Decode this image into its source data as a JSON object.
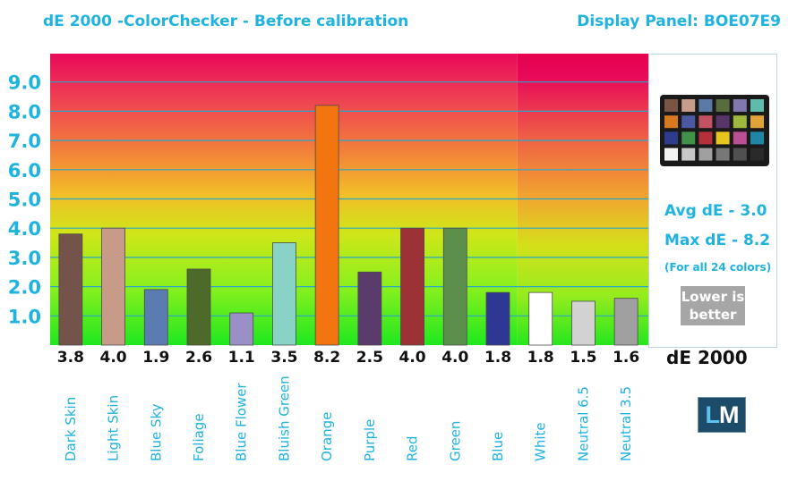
{
  "header": {
    "title": "dE 2000 -ColorChecker  - Before calibration",
    "panel": "Display Panel: BOE07E9"
  },
  "stats": {
    "avg": "Avg dE - 3.0",
    "max": "Max dE - 8.2",
    "note": "(For all 24 colors)",
    "lower_line1": "Lower is",
    "lower_line2": "better"
  },
  "axis_footer": "dE 2000",
  "logo": {
    "l": "L",
    "m": "M"
  },
  "colors": {
    "accent": "#1fb3e0",
    "gridline": "#2aa6c8"
  },
  "checker_swatches": [
    "#7a5544",
    "#c69c8a",
    "#5b7aa5",
    "#586d3d",
    "#8179ae",
    "#5fbcad",
    "#d9791f",
    "#4b58a4",
    "#c25261",
    "#583568",
    "#9eb840",
    "#e0a33a",
    "#2f3b8e",
    "#3f9248",
    "#b5303a",
    "#e8c51e",
    "#bb4f93",
    "#1f86a7",
    "#f2f2f2",
    "#c8c8c8",
    "#a0a0a0",
    "#777777",
    "#505050",
    "#2a2a2a"
  ],
  "chart_data": {
    "type": "bar",
    "ylim": [
      0,
      10
    ],
    "yticks": [
      "1.0",
      "2.0",
      "3.0",
      "4.0",
      "5.0",
      "6.0",
      "7.0",
      "8.0",
      "9.0"
    ],
    "grid": true,
    "categories": [
      "Dark Skin",
      "Light Skin",
      "Blue Sky",
      "Foliage",
      "Blue Flower",
      "Bluish Green",
      "Orange",
      "Purple",
      "Red",
      "Green",
      "Blue",
      "White",
      "Neutral 6.5",
      "Neutral 3.5"
    ],
    "values": [
      3.8,
      4.0,
      1.9,
      2.6,
      1.1,
      3.5,
      8.2,
      2.5,
      4.0,
      4.0,
      1.8,
      1.8,
      1.5,
      1.6
    ],
    "value_labels": [
      "3.8",
      "4.0",
      "1.9",
      "2.6",
      "1.1",
      "3.5",
      "8.2",
      "2.5",
      "4.0",
      "4.0",
      "1.8",
      "1.8",
      "1.5",
      "1.6"
    ],
    "bar_colors": [
      "#74544a",
      "#c89a88",
      "#5a7cb0",
      "#4d6a2a",
      "#9b8fc8",
      "#88d2c6",
      "#f2750f",
      "#5b3a6c",
      "#9c3236",
      "#5c8e4c",
      "#2e3894",
      "#ffffff",
      "#d2d2d2",
      "#a0a0a0"
    ]
  }
}
